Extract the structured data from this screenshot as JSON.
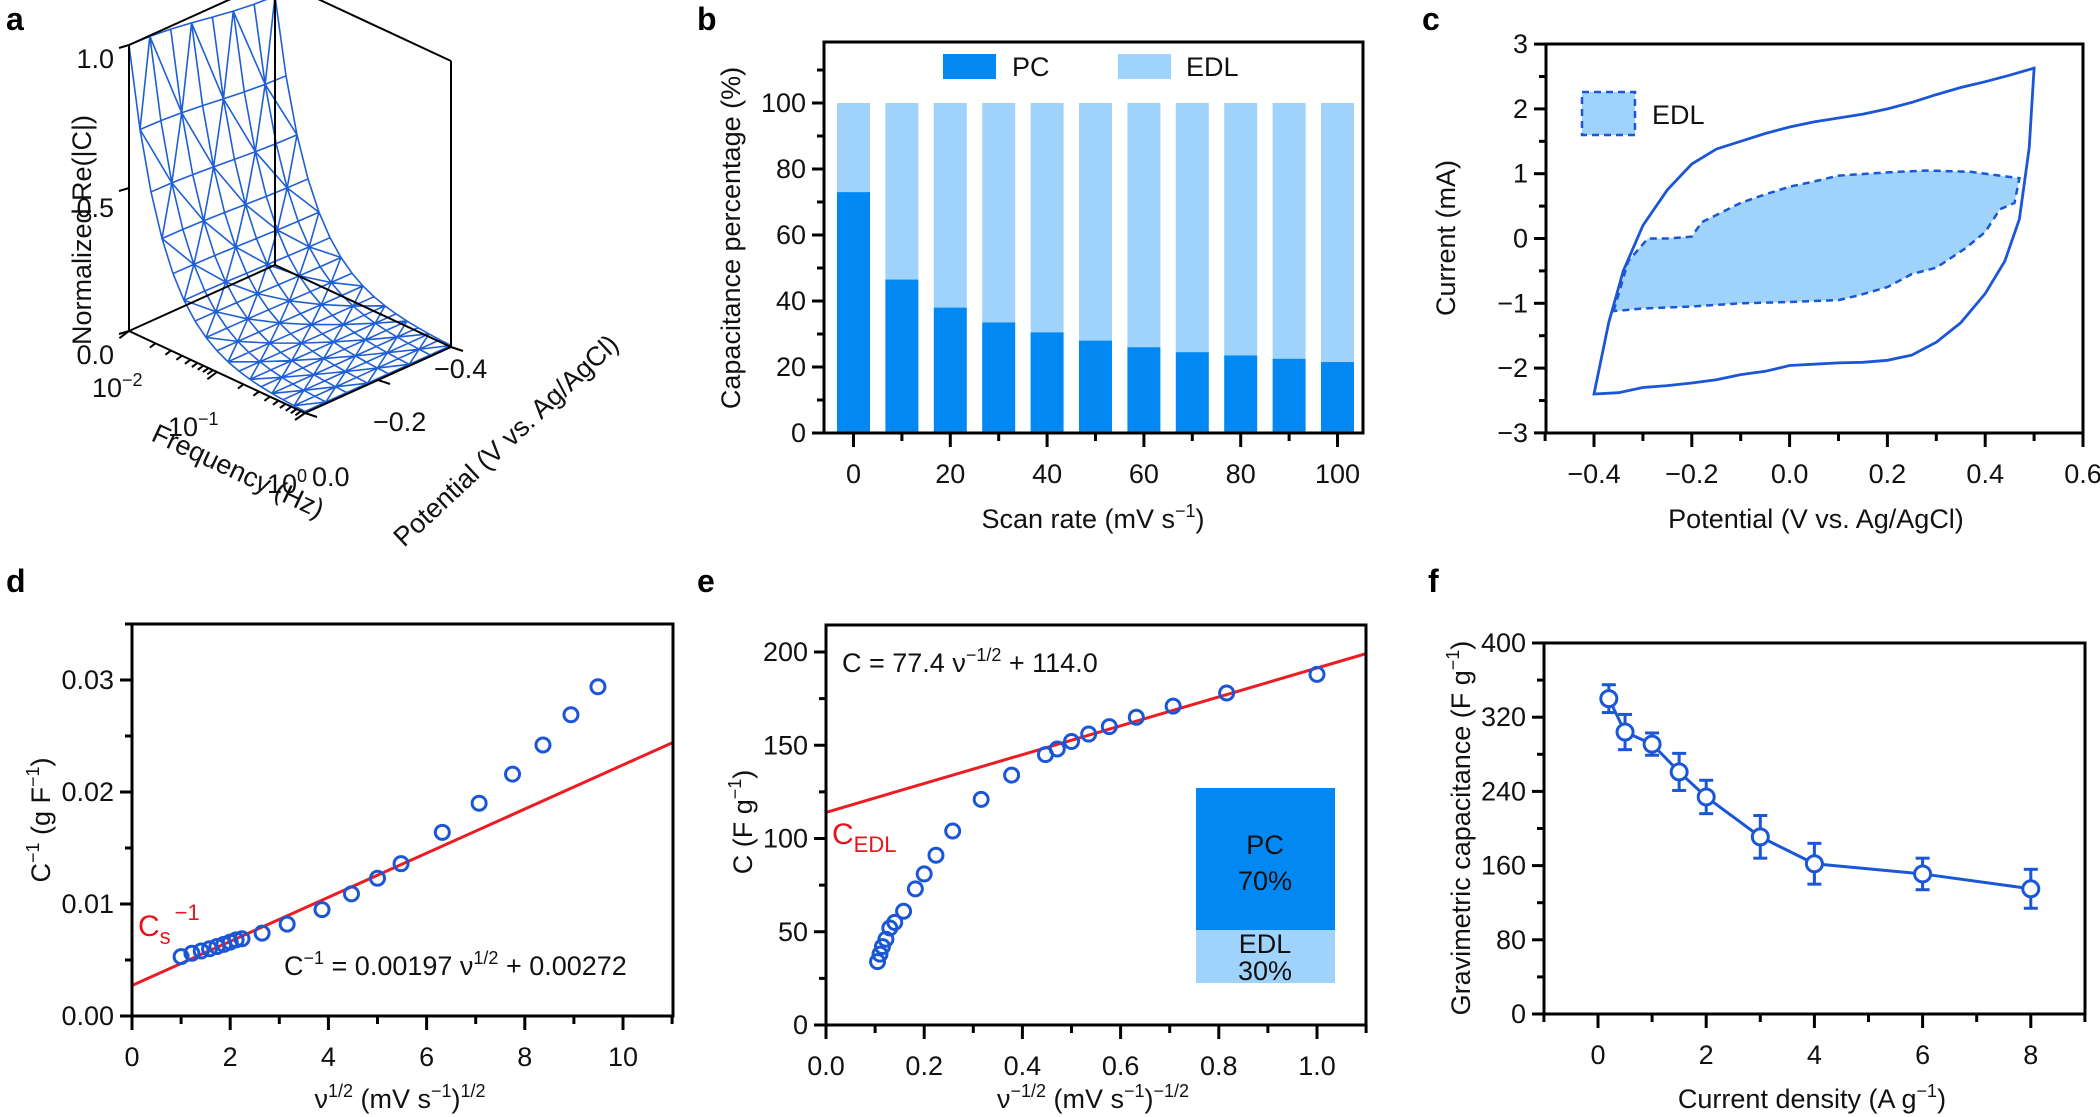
{
  "figure": {
    "panel_letters": [
      "a",
      "b",
      "c",
      "d",
      "e",
      "f"
    ]
  },
  "colors": {
    "pc": "#0288f2",
    "edl": "#9fd3fb",
    "line_blue": "#1a56d6",
    "fit_red": "#ec1c24"
  },
  "chart_data": [
    {
      "panel": "a",
      "type": "surface3d",
      "zlabel": "Normalized Re(|C|)",
      "xlabel": "Frequency (Hz)",
      "ylabel": "Potential (V vs. Ag/AgCl)",
      "z_ticks": [
        "0.0",
        "0.5",
        "1.0"
      ],
      "freq_ticks": [
        "10^-2",
        "10^-1",
        "10^0"
      ],
      "potential_ticks": [
        "0.0",
        "−0.2",
        "−0.4"
      ],
      "zlim": [
        0,
        1.0
      ],
      "freq_range_hz": [
        0.01,
        1
      ],
      "potential_range_v": [
        0.0,
        -0.4
      ],
      "description": "Normalized capacitance decays from 1.0 at 0.01 Hz to ~0 by 1 Hz across all potentials"
    },
    {
      "panel": "b",
      "type": "bar",
      "stacked": true,
      "ylabel": "Capacitance percentage (%)",
      "xlabel": "Scan rate (mV s⁻¹)",
      "ylim": [
        0,
        118
      ],
      "yticks": [
        "0",
        "20",
        "40",
        "60",
        "80",
        "100"
      ],
      "xticks": [
        "0",
        "20",
        "40",
        "60",
        "80",
        "100"
      ],
      "categories": [
        0,
        10,
        20,
        30,
        40,
        50,
        60,
        70,
        80,
        90,
        100
      ],
      "legend": [
        "PC",
        "EDL"
      ],
      "legend_position": "top",
      "series": [
        {
          "name": "PC",
          "values": [
            73,
            46.5,
            38,
            33.5,
            30.5,
            28,
            26,
            24.5,
            23.5,
            22.5,
            21.5
          ]
        },
        {
          "name": "EDL",
          "values": [
            27,
            53.5,
            62,
            66.5,
            69.5,
            72,
            74,
            75.5,
            76.5,
            77.5,
            78.5
          ]
        }
      ]
    },
    {
      "panel": "c",
      "type": "line",
      "xlabel": "Potential (V vs. Ag/AgCl)",
      "ylabel": "Current (mA)",
      "xlim": [
        -0.5,
        0.6
      ],
      "ylim": [
        -3,
        3
      ],
      "xticks": [
        "−0.4",
        "−0.2",
        "0.0",
        "0.2",
        "0.4",
        "0.6"
      ],
      "yticks": [
        "−3",
        "−2",
        "−1",
        "0",
        "1",
        "2",
        "3"
      ],
      "legend": [
        "EDL"
      ],
      "legend_position": "top-left",
      "series": [
        {
          "name": "CV total",
          "style": "solid",
          "x": [
            -0.4,
            -0.37,
            -0.34,
            -0.3,
            -0.25,
            -0.2,
            -0.15,
            -0.1,
            -0.05,
            0.0,
            0.05,
            0.1,
            0.15,
            0.2,
            0.25,
            0.3,
            0.35,
            0.4,
            0.45,
            0.5,
            0.49,
            0.47,
            0.44,
            0.4,
            0.35,
            0.3,
            0.25,
            0.2,
            0.15,
            0.1,
            0.05,
            0.0,
            -0.05,
            -0.1,
            -0.15,
            -0.2,
            -0.25,
            -0.3,
            -0.35,
            -0.4
          ],
          "y": [
            -2.4,
            -1.3,
            -0.5,
            0.2,
            0.75,
            1.15,
            1.38,
            1.5,
            1.62,
            1.72,
            1.8,
            1.86,
            1.92,
            2.0,
            2.1,
            2.22,
            2.33,
            2.42,
            2.52,
            2.63,
            1.4,
            0.3,
            -0.35,
            -0.85,
            -1.3,
            -1.6,
            -1.8,
            -1.88,
            -1.91,
            -1.92,
            -1.94,
            -1.96,
            -2.05,
            -2.1,
            -2.18,
            -2.23,
            -2.27,
            -2.3,
            -2.38,
            -2.4
          ]
        },
        {
          "name": "EDL",
          "style": "dashed-filled",
          "x": [
            -0.36,
            -0.33,
            -0.29,
            -0.25,
            -0.2,
            -0.18,
            -0.1,
            -0.05,
            0.0,
            0.05,
            0.1,
            0.2,
            0.28,
            0.37,
            0.47,
            0.46,
            0.43,
            0.4,
            0.36,
            0.3,
            0.25,
            0.2,
            0.14,
            0.1,
            0.0,
            -0.1,
            -0.2,
            -0.3,
            -0.36
          ],
          "y": [
            -1.12,
            -0.35,
            0.0,
            0.0,
            0.03,
            0.25,
            0.55,
            0.68,
            0.8,
            0.88,
            0.97,
            1.02,
            1.05,
            1.03,
            0.93,
            0.55,
            0.45,
            0.1,
            -0.15,
            -0.45,
            -0.55,
            -0.75,
            -0.88,
            -0.95,
            -0.98,
            -1.0,
            -1.05,
            -1.08,
            -1.12
          ]
        }
      ]
    },
    {
      "panel": "d",
      "type": "scatter",
      "xlabel": "ν^1/2 (mV s^-1)^1/2",
      "ylabel": "C^-1 (g F^-1)",
      "xlim": [
        0,
        11
      ],
      "ylim": [
        0,
        0.035
      ],
      "xticks": [
        "0",
        "2",
        "4",
        "6",
        "8",
        "10"
      ],
      "yticks": [
        "0.00",
        "0.01",
        "0.02",
        "0.03"
      ],
      "annotation": "C⁻¹ = 0.00197 ν¹ᐟ² + 0.00272",
      "red_label": "Cs⁻¹",
      "fit": {
        "slope": 0.00197,
        "intercept": 0.00272
      },
      "x": [
        1.0,
        1.22,
        1.41,
        1.58,
        1.73,
        1.87,
        2.0,
        2.12,
        2.24,
        2.65,
        3.16,
        3.87,
        4.47,
        5.0,
        5.48,
        6.32,
        7.07,
        7.75,
        8.37,
        8.94,
        9.49
      ],
      "y": [
        0.0053,
        0.0056,
        0.0058,
        0.006,
        0.0062,
        0.0064,
        0.0066,
        0.0068,
        0.0069,
        0.0074,
        0.0082,
        0.0095,
        0.0109,
        0.0123,
        0.0136,
        0.0164,
        0.019,
        0.0216,
        0.0242,
        0.0269,
        0.0294
      ]
    },
    {
      "panel": "e",
      "type": "scatter",
      "xlabel": "ν^-1/2 (mV s^-1)^-1/2",
      "ylabel": "C (F g^-1)",
      "xlim": [
        0,
        1.1
      ],
      "ylim": [
        0,
        215
      ],
      "xticks": [
        "0.0",
        "0.2",
        "0.4",
        "0.6",
        "0.8",
        "1.0"
      ],
      "yticks": [
        "0",
        "50",
        "100",
        "150",
        "200"
      ],
      "annotation": "C = 77.4 ν⁻¹ᐟ² + 114.0",
      "red_label": "CEDL",
      "fit": {
        "slope": 77.4,
        "intercept": 114.0
      },
      "inset_bar": [
        {
          "label": "PC",
          "pct": "70%",
          "value": 70
        },
        {
          "label": "EDL",
          "pct": "30%",
          "value": 30
        }
      ],
      "x": [
        0.105,
        0.11,
        0.115,
        0.122,
        0.13,
        0.14,
        0.158,
        0.182,
        0.2,
        0.224,
        0.258,
        0.316,
        0.378,
        0.447,
        0.471,
        0.5,
        0.535,
        0.577,
        0.632,
        0.707,
        0.816,
        1.0
      ],
      "y": [
        34,
        38,
        42,
        46,
        52,
        55,
        61,
        73,
        81,
        91,
        104,
        121,
        134,
        145,
        148,
        152,
        156,
        160,
        165,
        171,
        178,
        188
      ]
    },
    {
      "panel": "f",
      "type": "line",
      "xlabel": "Current density (A g^-1)",
      "ylabel": "Gravimetric capacitance (F g^-1)",
      "xlim": [
        -1,
        9
      ],
      "ylim": [
        0,
        400
      ],
      "xticks": [
        "0",
        "2",
        "4",
        "6",
        "8"
      ],
      "yticks": [
        "0",
        "80",
        "160",
        "240",
        "320",
        "400"
      ],
      "x": [
        0.2,
        0.5,
        1,
        1.5,
        2,
        3,
        4,
        6,
        8
      ],
      "y": [
        340,
        304,
        291,
        261,
        234,
        191,
        162,
        151,
        135
      ],
      "err": [
        15,
        19,
        12,
        20,
        18,
        23,
        22,
        17,
        21
      ]
    }
  ],
  "text": {
    "a": {
      "zlabel": "Normalized Re(|C|)",
      "xlabel": "Frequency (Hz)",
      "ylabel": "Potential (V vs. Ag/AgCl)",
      "z0": "0.0",
      "z05": "0.5",
      "z1": "1.0",
      "f1": "10",
      "f1e": "−2",
      "f2": "10",
      "f2e": "−1",
      "f3": "10",
      "f3e": "0",
      "p0": "0.0",
      "p1": "−0.2",
      "p2": "−0.4"
    },
    "b": {
      "ylabel": "Capacitance percentage (%)",
      "xlabel_main": "Scan rate (mV s",
      "xlabel_sup": "−1",
      "xlabel_end": ")",
      "legend_pc": "PC",
      "legend_edl": "EDL"
    },
    "c": {
      "ylabel": "Current (mA)",
      "xlabel": "Potential (V vs. Ag/AgCl)",
      "legend": "EDL"
    },
    "d": {
      "ylabel_main": "C",
      "ylabel_sup": "−1",
      "ylabel_rest": " (g F",
      "ylabel_sup2": "−1",
      "ylabel_end": ")",
      "xlabel_nu": "ν",
      "xlabel_sup": "1/2",
      "xlabel_mid": " (mV s",
      "xlabel_sup2": "−1",
      "xlabel_end": ")",
      "xlabel_sup3": "1/2",
      "eq_c": "C",
      "eq_sup": "−1",
      "eq_mid": " = 0.00197 ν",
      "eq_sup2": "1/2",
      "eq_end": " + 0.00272",
      "cs": "C",
      "cs_sub": "s",
      "cs_sup": "−1"
    },
    "e": {
      "ylabel_main": "C (F g",
      "ylabel_sup": "−1",
      "ylabel_end": ")",
      "xlabel_nu": "ν",
      "xlabel_sup": "−1/2",
      "xlabel_mid": " (mV s",
      "xlabel_sup2": "−1",
      "xlabel_end": ")",
      "xlabel_sup3": "−1/2",
      "eq_main": "C = 77.4 ν",
      "eq_sup": "−1/2",
      "eq_end": " + 114.0",
      "cedl": "C",
      "cedl_sub": "EDL",
      "inset_pc": "PC",
      "inset_pc_pct": "70%",
      "inset_edl": "EDL",
      "inset_edl_pct": "30%"
    },
    "f": {
      "ylabel_main": "Gravimetric capacitance (F g",
      "ylabel_sup": "−1",
      "ylabel_end": ")",
      "xlabel_main": "Current density (A g",
      "xlabel_sup": "−1",
      "xlabel_end": ")"
    }
  }
}
